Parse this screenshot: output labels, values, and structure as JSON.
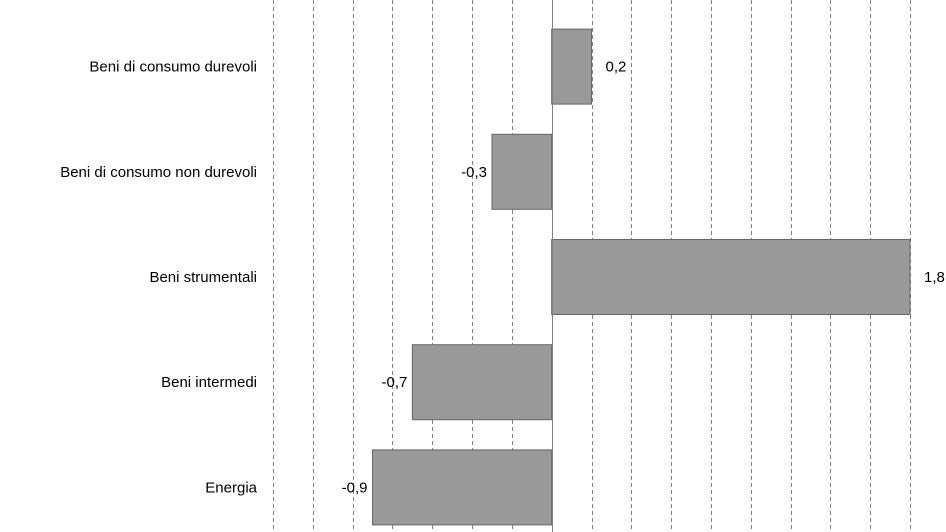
{
  "chart_data": {
    "type": "bar",
    "orientation": "horizontal",
    "categories": [
      "Beni di consumo durevoli",
      "Beni di consumo non durevoli",
      "Beni strumentali",
      "Beni intermedi",
      "Energia"
    ],
    "values": [
      0.2,
      -0.3,
      1.8,
      -0.7,
      -0.9
    ],
    "value_labels": [
      "0,2",
      "-0,3",
      "1,8",
      "-0,7",
      "-0,9"
    ],
    "xlim": [
      -1.4,
      1.8
    ],
    "gridline_step": 0.2,
    "grid": true,
    "grid_style": "dashed-vertical",
    "bar_color": "#999999",
    "bar_edge_color": "#666666",
    "axis_color": "#808080",
    "grid_color": "#808080",
    "title": "",
    "xlabel": "",
    "ylabel": ""
  }
}
